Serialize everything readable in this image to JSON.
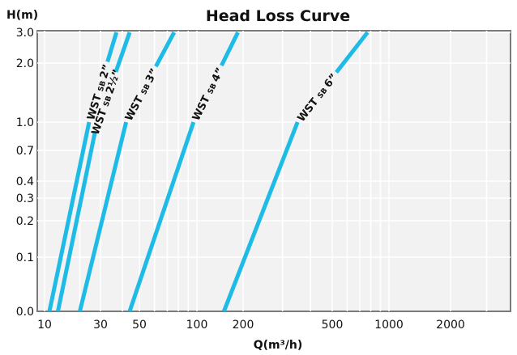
{
  "chart_data": {
    "type": "line",
    "title": "Head Loss Curve",
    "ylabel": "H(m)",
    "xlabel": "Q(m³/h)",
    "x_ticks": [
      "10",
      "30",
      "50",
      "100",
      "200",
      "500",
      "1000",
      "2000"
    ],
    "y_ticks": [
      "0.0",
      "0.1",
      "0.2",
      "0.3",
      "0.4",
      "0.7",
      "1.0",
      "2.0",
      "3.0"
    ],
    "series_color": "#1ebbe6",
    "grid": true,
    "series": [
      {
        "name": "WST SB 2”",
        "label_main": "WST",
        "label_sub": "SB",
        "label_size": "2”",
        "points": [
          [
            11,
            0.0
          ],
          [
            24,
            1.0
          ],
          [
            37,
            3.0
          ]
        ]
      },
      {
        "name": "WST SB 2½”",
        "label_main": "WST",
        "label_sub": "SB",
        "label_size": "2½”",
        "points": [
          [
            13,
            0.0
          ],
          [
            27,
            0.9
          ],
          [
            44,
            3.0
          ]
        ]
      },
      {
        "name": "WST SB 3”",
        "label_main": "WST",
        "label_sub": "SB",
        "label_size": "3”",
        "points": [
          [
            20,
            0.0
          ],
          [
            42,
            1.0
          ],
          [
            76,
            3.0
          ]
        ]
      },
      {
        "name": "WST SB 4”",
        "label_main": "WST",
        "label_sub": "SB",
        "label_size": "4”",
        "points": [
          [
            44,
            0.0
          ],
          [
            96,
            1.0
          ],
          [
            185,
            3.0
          ]
        ]
      },
      {
        "name": "WST SB 6”",
        "label_main": "WST",
        "label_sub": "SB",
        "label_size": "6”",
        "points": [
          [
            150,
            0.0
          ],
          [
            350,
            1.0
          ],
          [
            770,
            3.0
          ]
        ]
      }
    ]
  }
}
